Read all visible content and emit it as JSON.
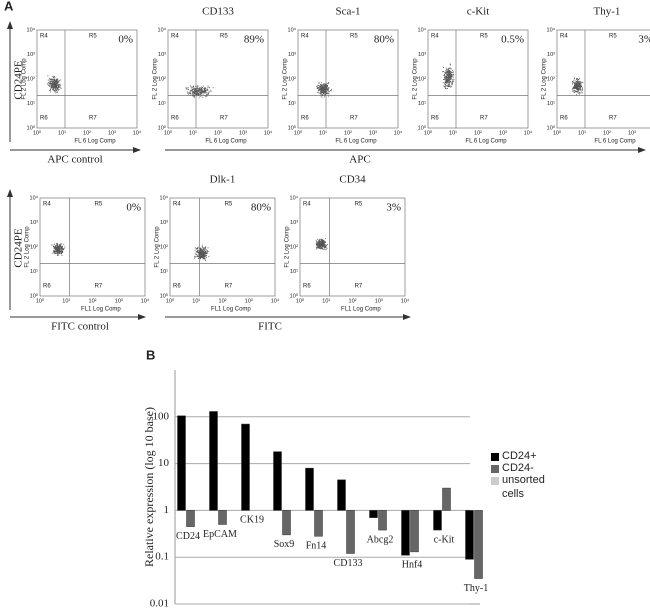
{
  "panel_a": {
    "label": "A",
    "y_axis_label": "CD24PE",
    "plot_y_label": "FL 2 Log Comp",
    "ticks": [
      "10⁰",
      "10¹",
      "10²",
      "10³",
      "10⁴"
    ],
    "quadrants": [
      "R4",
      "R5",
      "R6",
      "R7"
    ],
    "rows": [
      {
        "control_label": "APC control",
        "group_label": "APC",
        "plot_x_label": "FL 6 Log Comp",
        "plots": [
          {
            "percent": "0%"
          },
          {
            "title": "CD133",
            "percent": "89%"
          },
          {
            "title": "Sca-1",
            "percent": "80%"
          },
          {
            "title": "c-Kit",
            "percent": "0.5%"
          },
          {
            "title": "Thy-1",
            "percent": "3%"
          }
        ]
      },
      {
        "control_label": "FITC control",
        "group_label": "FITC",
        "plot_x_label": "FL1 Log Comp",
        "plots": [
          {
            "percent": "0%"
          },
          {
            "title": "Dlk-1",
            "percent": "80%"
          },
          {
            "title": "CD34",
            "percent": "3%"
          }
        ]
      }
    ]
  },
  "panel_b_label": "B",
  "chart_data": {
    "type": "bar",
    "y_label": "Relative expression (log 10 base)",
    "categories": [
      "CD24",
      "EpCAM",
      "CK19",
      "Sox9",
      "Fn14",
      "CD133",
      "Abcg2",
      "Hnf4",
      "c-Kit",
      "Thy-1"
    ],
    "series": [
      {
        "name": "CD24+",
        "color": "#000000",
        "values": [
          105,
          130,
          70,
          18,
          8,
          4.5,
          0.7,
          0.11,
          0.38,
          0.09
        ]
      },
      {
        "name": "CD24-",
        "color": "#666666",
        "values": [
          0.45,
          0.5,
          1.0,
          0.3,
          0.28,
          0.12,
          0.38,
          0.13,
          3,
          0.035
        ]
      },
      {
        "name": "unsorted cells",
        "color": "#cccccc",
        "values": [
          1,
          1,
          1,
          1,
          1,
          1,
          1,
          1,
          1,
          1
        ]
      }
    ],
    "log_scale": true,
    "ylim": [
      0.01,
      1000
    ],
    "yticks": [
      100,
      10,
      1,
      0.1,
      0.01
    ],
    "grid": true
  }
}
